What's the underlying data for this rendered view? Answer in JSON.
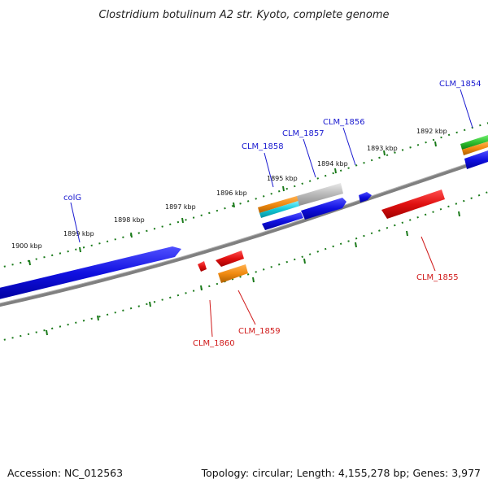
{
  "title": "Clostridium botulinum A2 str. Kyoto, complete genome",
  "ticks": [
    {
      "label": "1900 kbp"
    },
    {
      "label": "1899 kbp"
    },
    {
      "label": "1898 kbp"
    },
    {
      "label": "1897 kbp"
    },
    {
      "label": "1896 kbp"
    },
    {
      "label": "1895 kbp"
    },
    {
      "label": "1894 kbp"
    },
    {
      "label": "1893 kbp"
    },
    {
      "label": "1892 kbp"
    }
  ],
  "gene_labels": [
    {
      "name": "colG",
      "strand": "forward"
    },
    {
      "name": "CLM_1858",
      "strand": "forward"
    },
    {
      "name": "CLM_1857",
      "strand": "forward"
    },
    {
      "name": "CLM_1856",
      "strand": "forward"
    },
    {
      "name": "CLM_1854",
      "strand": "forward"
    },
    {
      "name": "CLM_1860",
      "strand": "reverse"
    },
    {
      "name": "CLM_1859",
      "strand": "reverse"
    },
    {
      "name": "CLM_1855",
      "strand": "reverse"
    }
  ],
  "colors": {
    "forward_gene": "#1010e0",
    "reverse_gene": "#e01010",
    "orange_feature": "#f08a10",
    "cyan_feature": "#10c8d8",
    "grey_feature": "#b8b8b8",
    "green_feature": "#30c030",
    "backbone": "#808080",
    "tick_marks": "#1a7a1a",
    "forward_label": "#1a1ad0",
    "reverse_label": "#d01a1a"
  },
  "footer": {
    "accession": "Accession: NC_012563",
    "topology": "Topology: circular; Length: 4,155,278 bp; Genes: 3,977"
  }
}
